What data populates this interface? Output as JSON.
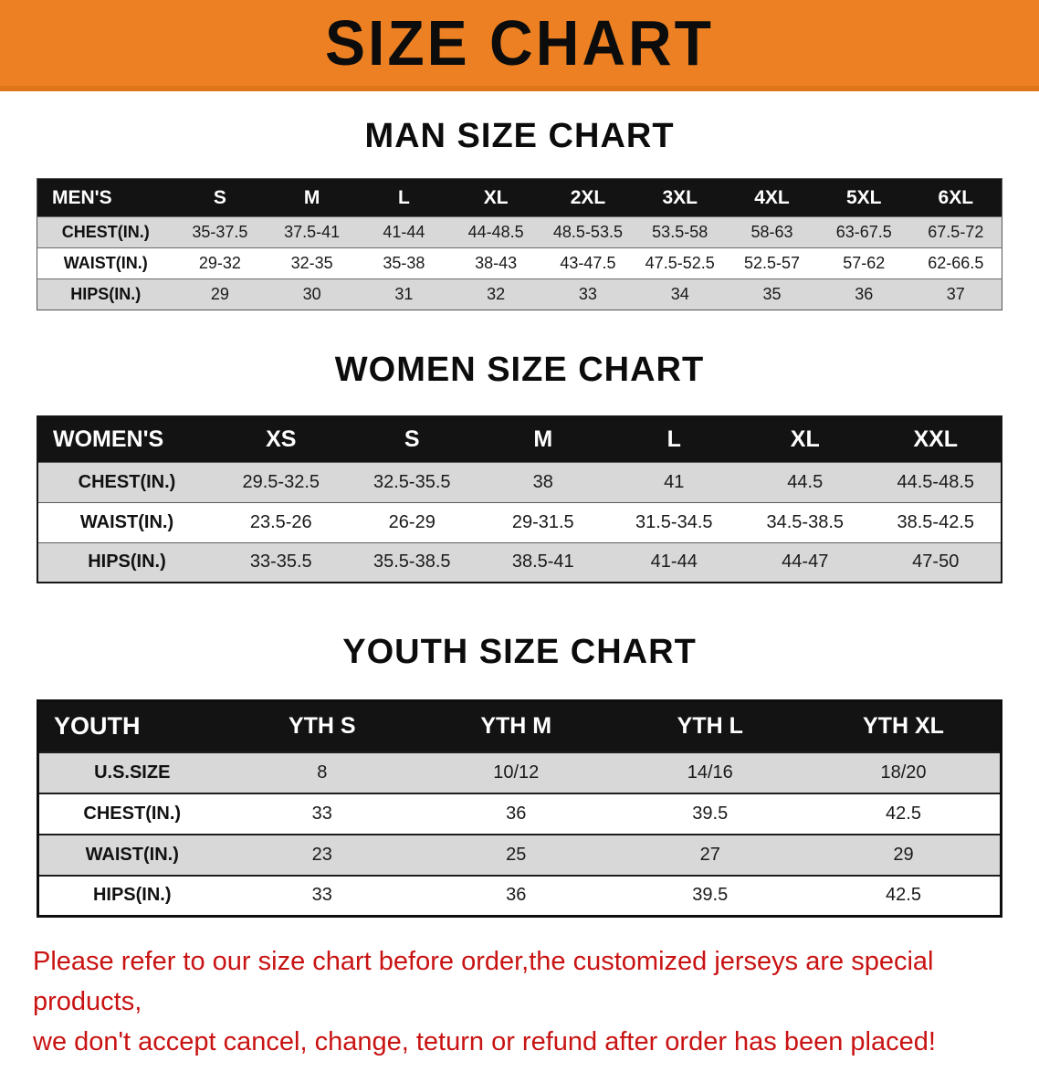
{
  "banner": {
    "title": "SIZE CHART",
    "bg_color": "#ec8022"
  },
  "sections": [
    {
      "id": "men",
      "title": "MAN SIZE CHART",
      "table": {
        "header": [
          "MEN'S",
          "S",
          "M",
          "L",
          "XL",
          "2XL",
          "3XL",
          "4XL",
          "5XL",
          "6XL"
        ],
        "rows": [
          [
            "CHEST(IN.)",
            "35-37.5",
            "37.5-41",
            "41-44",
            "44-48.5",
            "48.5-53.5",
            "53.5-58",
            "58-63",
            "63-67.5",
            "67.5-72"
          ],
          [
            "WAIST(IN.)",
            "29-32",
            "32-35",
            "35-38",
            "38-43",
            "43-47.5",
            "47.5-52.5",
            "52.5-57",
            "57-62",
            "62-66.5"
          ],
          [
            "HIPS(IN.)",
            "29",
            "30",
            "31",
            "32",
            "33",
            "34",
            "35",
            "36",
            "37"
          ]
        ]
      }
    },
    {
      "id": "women",
      "title": "WOMEN SIZE CHART",
      "table": {
        "header": [
          "WOMEN'S",
          "XS",
          "S",
          "M",
          "L",
          "XL",
          "XXL"
        ],
        "rows": [
          [
            "CHEST(IN.)",
            "29.5-32.5",
            "32.5-35.5",
            "38",
            "41",
            "44.5",
            "44.5-48.5"
          ],
          [
            "WAIST(IN.)",
            "23.5-26",
            "26-29",
            "29-31.5",
            "31.5-34.5",
            "34.5-38.5",
            "38.5-42.5"
          ],
          [
            "HIPS(IN.)",
            "33-35.5",
            "35.5-38.5",
            "38.5-41",
            "41-44",
            "44-47",
            "47-50"
          ]
        ]
      }
    },
    {
      "id": "youth",
      "title": "YOUTH SIZE CHART",
      "table": {
        "header": [
          "YOUTH",
          "YTH S",
          "YTH M",
          "YTH L",
          "YTH XL"
        ],
        "rows": [
          [
            "U.S.SIZE",
            "8",
            "10/12",
            "14/16",
            "18/20"
          ],
          [
            "CHEST(IN.)",
            "33",
            "36",
            "39.5",
            "42.5"
          ],
          [
            "WAIST(IN.)",
            "23",
            "25",
            "27",
            "29"
          ],
          [
            "HIPS(IN.)",
            "33",
            "36",
            "39.5",
            "42.5"
          ]
        ]
      }
    }
  ],
  "footer": {
    "text_color": "#c91313",
    "line1": "Please refer to our size chart before order,the customized jerseys are special products,",
    "line2": "we don't accept cancel, change, teturn or refund after order has been placed!"
  }
}
